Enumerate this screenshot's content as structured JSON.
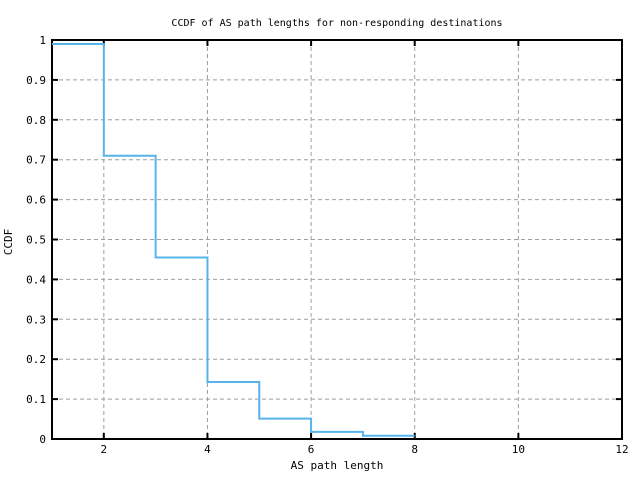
{
  "page": {
    "background": "#ffffff"
  },
  "chart": {
    "title": "CCDF of AS path lengths for non-responding destinations",
    "xlabel": "AS path length",
    "ylabel": "CCDF"
  },
  "chart_data": {
    "type": "line",
    "style": "step-post",
    "title": "CCDF of AS path lengths for non-responding destinations",
    "xlabel": "AS path length",
    "ylabel": "CCDF",
    "x": [
      1,
      2,
      3,
      4,
      5,
      6,
      7,
      8
    ],
    "ccdf": [
      0.99,
      0.71,
      0.455,
      0.143,
      0.051,
      0.018,
      0.008
    ],
    "xlim": [
      1,
      12
    ],
    "ylim": [
      0,
      1
    ],
    "x_ticks": [
      2,
      4,
      6,
      8,
      10,
      12
    ],
    "x_tick_labels": [
      "2",
      "4",
      "6",
      "8",
      "10",
      "12"
    ],
    "y_ticks": [
      0,
      0.1,
      0.2,
      0.3,
      0.4,
      0.5,
      0.6,
      0.7,
      0.8,
      0.9,
      1
    ],
    "y_tick_labels": [
      "0",
      "0.1",
      "0.2",
      "0.3",
      "0.4",
      "0.5",
      "0.6",
      "0.7",
      "0.8",
      "0.9",
      "1"
    ],
    "x_gridlines": [
      2,
      4,
      6,
      8,
      10
    ],
    "y_gridlines": [
      0.1,
      0.2,
      0.3,
      0.4,
      0.5,
      0.6,
      0.7,
      0.8,
      0.9
    ],
    "grid": true,
    "legend": "none",
    "colors": {
      "line": "#56b4e9",
      "grid": "#9e9e9e",
      "border": "#000000",
      "text": "#000000",
      "background": "#ffffff"
    }
  }
}
